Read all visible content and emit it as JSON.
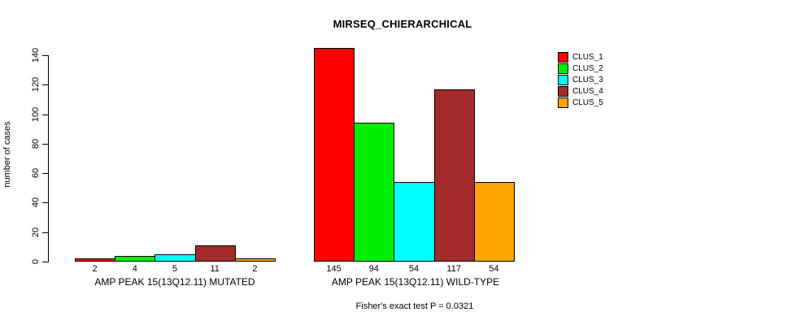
{
  "chart_data": {
    "type": "bar",
    "title": "MIRSEQ_CHIERARCHICAL",
    "ylabel": "number of cases",
    "ylim": [
      0,
      145
    ],
    "yticks": [
      0,
      20,
      40,
      60,
      80,
      100,
      120,
      140
    ],
    "grid": false,
    "legend_position": "top-right",
    "categories": [
      "AMP PEAK 15(13Q12.11) MUTATED",
      "AMP PEAK 15(13Q12.11) WILD-TYPE"
    ],
    "category_keys": [
      "mutated",
      "wild-type"
    ],
    "series": [
      {
        "name": "CLUS_1",
        "color": "#FF0000",
        "values": [
          2,
          145
        ]
      },
      {
        "name": "CLUS_2",
        "color": "#00EE00",
        "values": [
          4,
          94
        ]
      },
      {
        "name": "CLUS_3",
        "color": "#00FFFF",
        "values": [
          5,
          54
        ]
      },
      {
        "name": "CLUS_4",
        "color": "#A52A2A",
        "values": [
          11,
          117
        ]
      },
      {
        "name": "CLUS_5",
        "color": "#FFA500",
        "values": [
          2,
          54
        ]
      }
    ],
    "bar_labels": [
      [
        2,
        4,
        5,
        11,
        2
      ],
      [
        145,
        94,
        54,
        117,
        54
      ]
    ],
    "annotation": "Fisher's exact test P = 0.0321"
  }
}
